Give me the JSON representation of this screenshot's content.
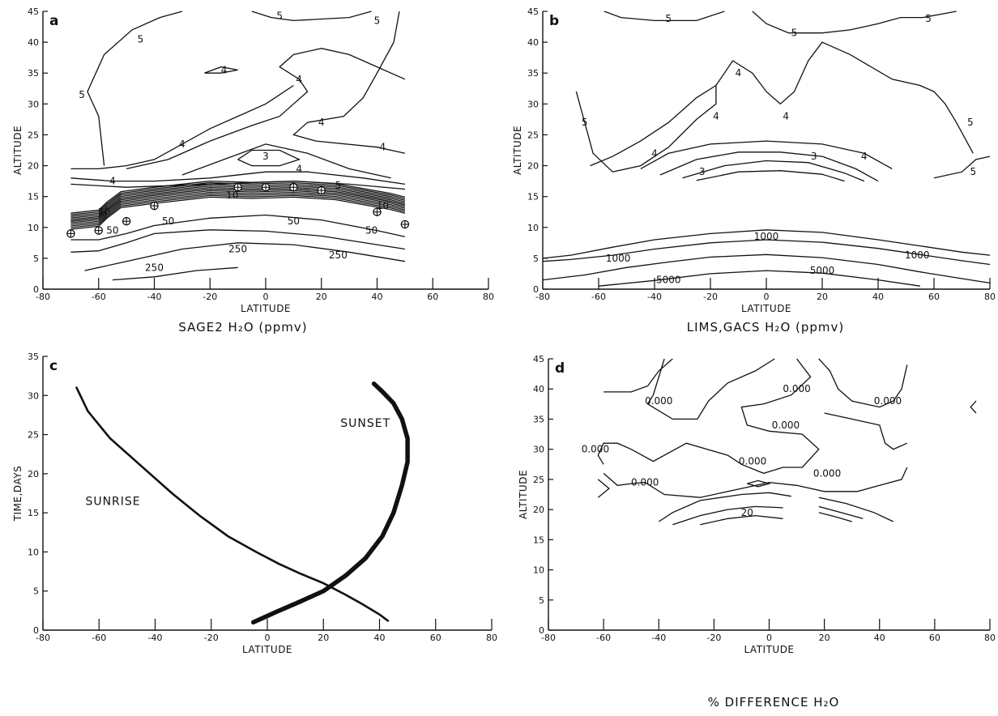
{
  "chart_data": [
    {
      "id": "a",
      "panel_letter": "a",
      "type": "contour",
      "caption": "SAGE2 H₂O (ppmv)",
      "xlabel": "LATITUDE",
      "ylabel": "ALTITUDE",
      "xlim": [
        -80,
        80
      ],
      "ylim": [
        0,
        45
      ],
      "xticks": [
        -80,
        -60,
        -40,
        -20,
        0,
        20,
        40,
        60,
        80
      ],
      "yticks": [
        0,
        5,
        10,
        15,
        20,
        25,
        30,
        35,
        40,
        45
      ],
      "contour_levels": [
        3,
        4,
        5,
        10,
        50,
        250
      ],
      "contour_labels": [
        {
          "text": "5",
          "x": 5,
          "y": 44.3
        },
        {
          "text": "5",
          "x": 40,
          "y": 43.5
        },
        {
          "text": "5",
          "x": -45,
          "y": 40.5
        },
        {
          "text": "5",
          "x": -66,
          "y": 31.5
        },
        {
          "text": "4",
          "x": -15,
          "y": 35.5
        },
        {
          "text": "4",
          "x": 12,
          "y": 34
        },
        {
          "text": "4",
          "x": 20,
          "y": 27
        },
        {
          "text": "4",
          "x": -30,
          "y": 23.5
        },
        {
          "text": "4",
          "x": 42,
          "y": 23
        },
        {
          "text": "3",
          "x": 0,
          "y": 21.5
        },
        {
          "text": "4",
          "x": -55,
          "y": 17.5
        },
        {
          "text": "4",
          "x": 12,
          "y": 19.5
        },
        {
          "text": "5",
          "x": 26,
          "y": 16.8
        },
        {
          "text": "10",
          "x": -12,
          "y": 15.2
        },
        {
          "text": "10",
          "x": -58,
          "y": 12.5
        },
        {
          "text": "10",
          "x": 42,
          "y": 13.5
        },
        {
          "text": "50",
          "x": -55,
          "y": 9.5
        },
        {
          "text": "50",
          "x": -35,
          "y": 11
        },
        {
          "text": "50",
          "x": 10,
          "y": 11
        },
        {
          "text": "50",
          "x": 38,
          "y": 9.5
        },
        {
          "text": "250",
          "x": -40,
          "y": 3.5
        },
        {
          "text": "250",
          "x": -10,
          "y": 6.5
        },
        {
          "text": "250",
          "x": 26,
          "y": 5.5
        }
      ],
      "tropopause_markers": [
        {
          "lat": -70,
          "alt": 9
        },
        {
          "lat": -60,
          "alt": 9.5
        },
        {
          "lat": -50,
          "alt": 11
        },
        {
          "lat": -40,
          "alt": 13.5
        },
        {
          "lat": -10,
          "alt": 16.5
        },
        {
          "lat": 0,
          "alt": 16.5
        },
        {
          "lat": 10,
          "alt": 16.5
        },
        {
          "lat": 20,
          "alt": 16
        },
        {
          "lat": 40,
          "alt": 12.5
        },
        {
          "lat": 50,
          "alt": 10.5
        }
      ]
    },
    {
      "id": "b",
      "panel_letter": "b",
      "type": "contour",
      "caption": "LIMS,GACS H₂O (ppmv)",
      "xlabel": "LATITUDE",
      "ylabel": "ALTITUDE",
      "xlim": [
        -80,
        80
      ],
      "ylim": [
        0,
        45
      ],
      "xticks": [
        -80,
        -60,
        -40,
        -20,
        0,
        20,
        40,
        60,
        80
      ],
      "yticks": [
        0,
        5,
        10,
        15,
        20,
        25,
        30,
        35,
        40,
        45
      ],
      "contour_levels": [
        3,
        4,
        5,
        1000,
        5000
      ],
      "contour_labels": [
        {
          "text": "5",
          "x": -35,
          "y": 43.8
        },
        {
          "text": "5",
          "x": 10,
          "y": 41.5
        },
        {
          "text": "5",
          "x": 58,
          "y": 43.8
        },
        {
          "text": "4",
          "x": -10,
          "y": 35
        },
        {
          "text": "5",
          "x": -65,
          "y": 27
        },
        {
          "text": "4",
          "x": -18,
          "y": 28
        },
        {
          "text": "4",
          "x": 7,
          "y": 28
        },
        {
          "text": "5",
          "x": 73,
          "y": 27
        },
        {
          "text": "4",
          "x": -40,
          "y": 22
        },
        {
          "text": "4",
          "x": 35,
          "y": 21.5
        },
        {
          "text": "3",
          "x": -23,
          "y": 19
        },
        {
          "text": "3",
          "x": 17,
          "y": 21.5
        },
        {
          "text": "5",
          "x": 74,
          "y": 19
        },
        {
          "text": "1000",
          "x": 0,
          "y": 8.5
        },
        {
          "text": "1000",
          "x": -53,
          "y": 5
        },
        {
          "text": "1000",
          "x": 54,
          "y": 5.5
        },
        {
          "text": "5000",
          "x": -35,
          "y": 1.5
        },
        {
          "text": "5000",
          "x": 20,
          "y": 3
        }
      ]
    },
    {
      "id": "c",
      "panel_letter": "c",
      "type": "line",
      "caption": "",
      "xlabel": "LATITUDE",
      "ylabel": "TIME,DAYS",
      "xlim": [
        -80,
        80
      ],
      "ylim": [
        0,
        35
      ],
      "xticks": [
        -80,
        -60,
        -40,
        -20,
        0,
        20,
        40,
        60,
        80
      ],
      "yticks": [
        0,
        5,
        10,
        15,
        20,
        25,
        30,
        35
      ],
      "series": [
        {
          "name": "SUNRISE",
          "label_at": {
            "x": -55,
            "y": 16
          },
          "x": [
            -68,
            -64,
            -56,
            -45,
            -34,
            -24,
            -14,
            -4,
            4,
            12,
            20,
            28,
            34,
            40,
            43
          ],
          "y": [
            31,
            28,
            24.5,
            21,
            17.5,
            14.6,
            12,
            10,
            8.5,
            7.2,
            6,
            4.5,
            3.3,
            2,
            1.2
          ]
        },
        {
          "name": "SUNSET",
          "label_at": {
            "x": 35,
            "y": 26
          },
          "x": [
            -5,
            3,
            12,
            20,
            28,
            35,
            41,
            45,
            48,
            50,
            50,
            48,
            45,
            41,
            38
          ],
          "y": [
            1,
            2.3,
            3.7,
            5,
            7,
            9.2,
            12,
            15,
            18.5,
            21.5,
            24.5,
            27,
            29,
            30.5,
            31.5
          ]
        }
      ]
    },
    {
      "id": "d",
      "panel_letter": "d",
      "type": "contour",
      "caption": "% DIFFERENCE H₂O",
      "xlabel": "LATITUDE",
      "ylabel": "ALTITUDE",
      "xlim": [
        -80,
        80
      ],
      "ylim": [
        0,
        45
      ],
      "xticks": [
        -80,
        -60,
        -40,
        -20,
        0,
        20,
        40,
        60,
        80
      ],
      "yticks": [
        0,
        5,
        10,
        15,
        20,
        25,
        30,
        35,
        40,
        45
      ],
      "contour_levels": [
        0,
        20
      ],
      "contour_labels": [
        {
          "text": "0.000",
          "x": -40,
          "y": 38
        },
        {
          "text": "0.000",
          "x": 10,
          "y": 40
        },
        {
          "text": "0.000",
          "x": 43,
          "y": 38
        },
        {
          "text": "0.000",
          "x": 6,
          "y": 34
        },
        {
          "text": "0.000",
          "x": -63,
          "y": 30
        },
        {
          "text": "0.000",
          "x": -6,
          "y": 28
        },
        {
          "text": "0.000",
          "x": 21,
          "y": 26
        },
        {
          "text": "0.000",
          "x": -45,
          "y": 24.5
        },
        {
          "text": "20",
          "x": -8,
          "y": 19.5
        }
      ]
    }
  ]
}
